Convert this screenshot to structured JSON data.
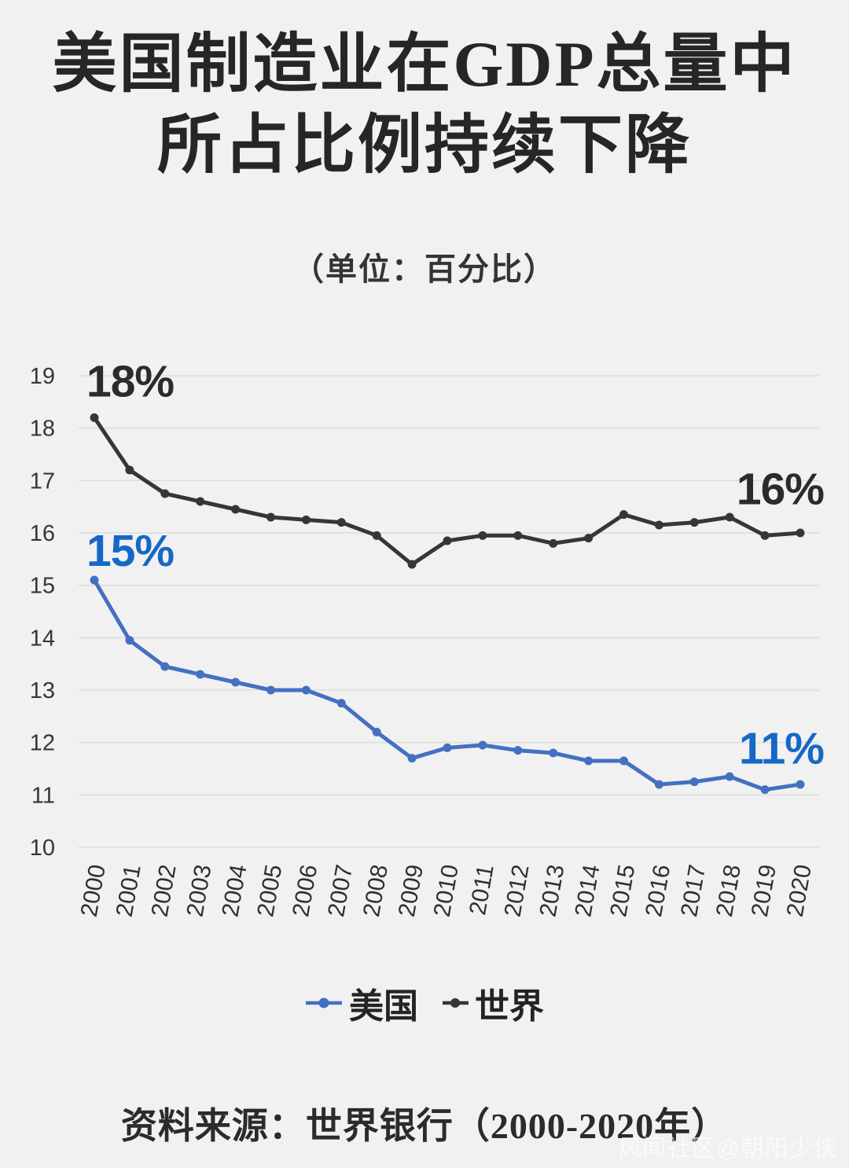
{
  "title": {
    "line1": "美国制造业在GDP总量中",
    "line2": "所占比例持续下降"
  },
  "subtitle": "（单位：百分比）",
  "source": {
    "prefix": "资料来源：",
    "text": "世界银行（2000-2020年）"
  },
  "watermark": "风闻社区@朝阳少侠",
  "colors": {
    "background": "#f1f1f2",
    "gridline": "#dedede",
    "us_line": "#4470c0",
    "us_label": "#1668c7",
    "world_line": "#363636",
    "world_label": "#2b2b2b",
    "tick_text": "#333333"
  },
  "chart_data": {
    "type": "line",
    "title": "美国制造业在GDP总量中所占比例持续下降",
    "unit_note": "（单位：百分比）",
    "x": [
      2000,
      2001,
      2002,
      2003,
      2004,
      2005,
      2006,
      2007,
      2008,
      2009,
      2010,
      2011,
      2012,
      2013,
      2014,
      2015,
      2016,
      2017,
      2018,
      2019,
      2020
    ],
    "ylim": [
      10,
      19
    ],
    "yticks": [
      19,
      18,
      17,
      16,
      15,
      14,
      13,
      12,
      11,
      10
    ],
    "grid": true,
    "legend_position": "bottom",
    "series": [
      {
        "name": "美国",
        "color": "#4470c0",
        "values": [
          15.1,
          13.95,
          13.45,
          13.3,
          13.15,
          13.0,
          13.0,
          12.75,
          12.2,
          11.7,
          11.9,
          11.95,
          11.85,
          11.8,
          11.65,
          11.65,
          11.2,
          11.25,
          11.35,
          11.1,
          11.2
        ]
      },
      {
        "name": "世界",
        "color": "#363636",
        "values": [
          18.2,
          17.2,
          16.75,
          16.6,
          16.45,
          16.3,
          16.25,
          16.2,
          15.95,
          15.4,
          15.85,
          15.95,
          15.95,
          15.8,
          15.9,
          16.35,
          16.15,
          16.2,
          16.3,
          15.95,
          16.0
        ]
      }
    ],
    "annotations": [
      {
        "text": "18%",
        "x_year": 2000,
        "y_value": 18.6,
        "anchor": "start",
        "color": "#2b2b2b"
      },
      {
        "text": "15%",
        "x_year": 2000,
        "y_value": 15.37,
        "anchor": "start",
        "color": "#1668c7"
      },
      {
        "text": "16%",
        "x_year": 2020,
        "y_value": 16.55,
        "anchor": "end",
        "color": "#2b2b2b"
      },
      {
        "text": "11%",
        "x_year": 2020,
        "y_value": 11.6,
        "anchor": "end",
        "color": "#1668c7"
      }
    ]
  }
}
